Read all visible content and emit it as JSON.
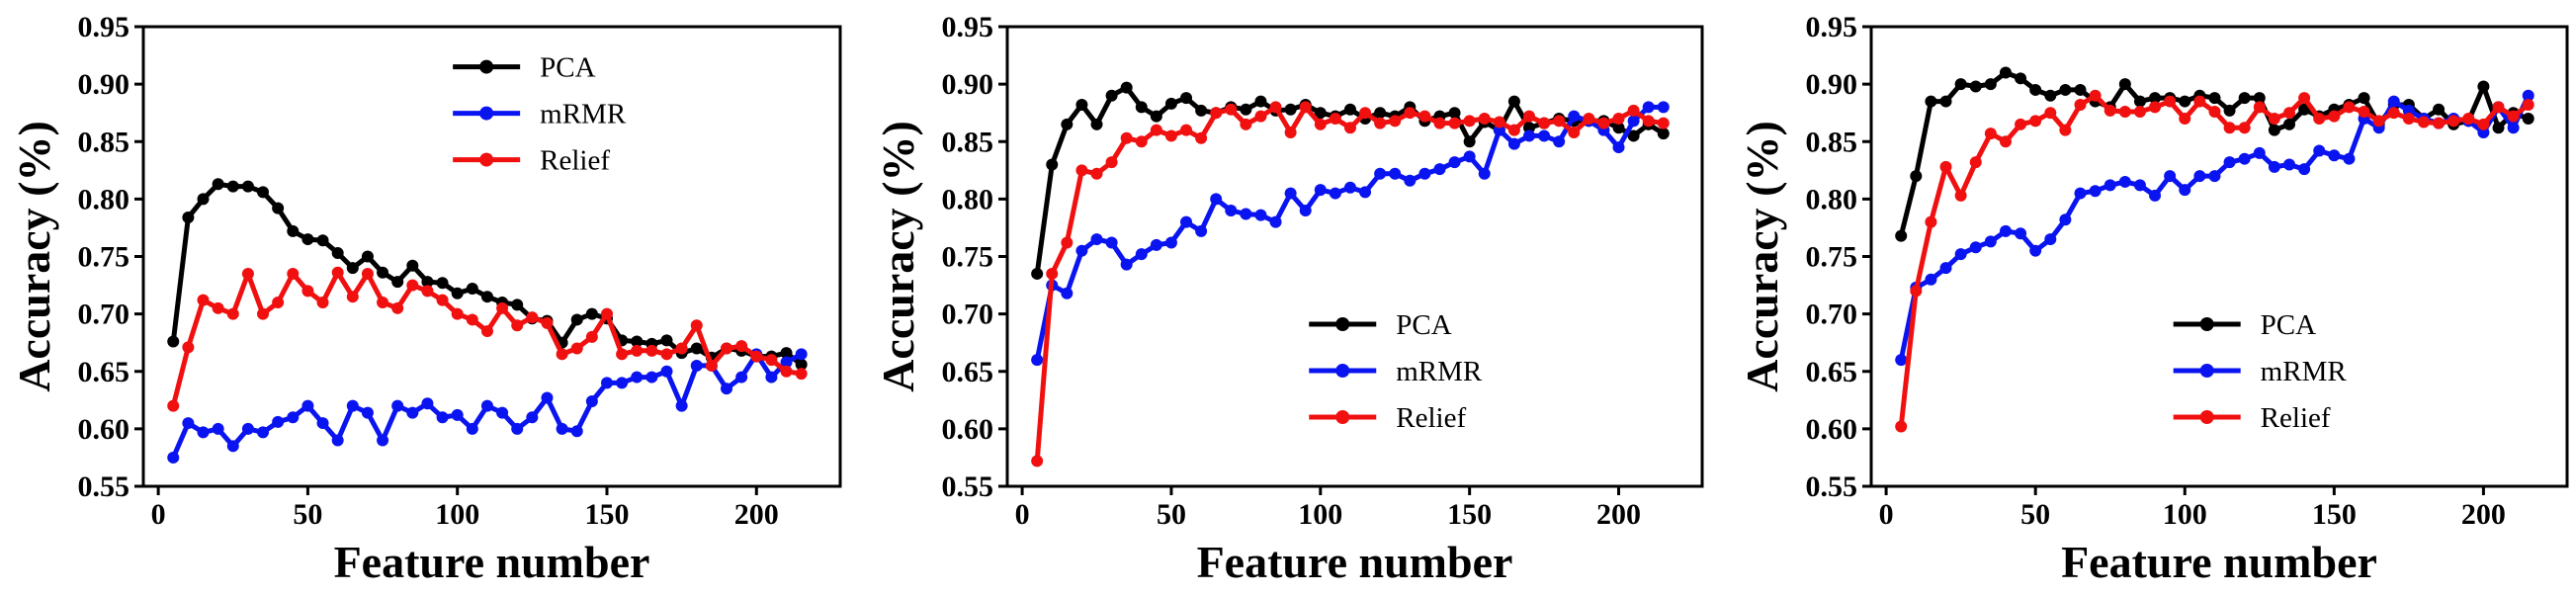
{
  "chart_data": [
    {
      "type": "line",
      "xlabel": "Feature number",
      "ylabel": "Accuracy (%)",
      "xlim": [
        -5,
        228
      ],
      "ylim": [
        0.55,
        0.95
      ],
      "x_ticks": [
        "0",
        "50",
        "100",
        "150",
        "200"
      ],
      "y_ticks": [
        "0.55",
        "0.60",
        "0.65",
        "0.70",
        "0.75",
        "0.80",
        "0.85",
        "0.90",
        "0.95"
      ],
      "legend_position": "upper-right",
      "x": [
        5,
        10,
        15,
        20,
        25,
        30,
        35,
        40,
        45,
        50,
        55,
        60,
        65,
        70,
        75,
        80,
        85,
        90,
        95,
        100,
        105,
        110,
        115,
        120,
        125,
        130,
        135,
        140,
        145,
        150,
        155,
        160,
        165,
        170,
        175,
        180,
        185,
        190,
        195,
        200,
        205,
        210,
        215
      ],
      "series": [
        {
          "name": "PCA",
          "color": "#000000",
          "values": [
            0.676,
            0.784,
            0.8,
            0.813,
            0.811,
            0.811,
            0.806,
            0.792,
            0.772,
            0.765,
            0.764,
            0.753,
            0.74,
            0.75,
            0.736,
            0.728,
            0.742,
            0.728,
            0.727,
            0.718,
            0.722,
            0.715,
            0.71,
            0.708,
            0.696,
            0.694,
            0.675,
            0.695,
            0.7,
            0.696,
            0.677,
            0.676,
            0.674,
            0.677,
            0.666,
            0.67,
            0.662,
            0.67,
            0.668,
            0.663,
            0.663,
            0.666,
            0.656
          ]
        },
        {
          "name": "mRMR",
          "color": "#0a14f0",
          "values": [
            0.575,
            0.605,
            0.597,
            0.6,
            0.585,
            0.6,
            0.597,
            0.606,
            0.61,
            0.62,
            0.605,
            0.59,
            0.62,
            0.614,
            0.59,
            0.62,
            0.614,
            0.622,
            0.61,
            0.612,
            0.6,
            0.62,
            0.614,
            0.6,
            0.61,
            0.627,
            0.6,
            0.598,
            0.624,
            0.64,
            0.64,
            0.645,
            0.645,
            0.65,
            0.62,
            0.655,
            0.655,
            0.635,
            0.645,
            0.665,
            0.645,
            0.658,
            0.665
          ]
        },
        {
          "name": "Relief",
          "color": "#f01010",
          "values": [
            0.62,
            0.671,
            0.712,
            0.705,
            0.7,
            0.735,
            0.7,
            0.71,
            0.735,
            0.72,
            0.71,
            0.736,
            0.715,
            0.735,
            0.71,
            0.705,
            0.725,
            0.72,
            0.712,
            0.7,
            0.695,
            0.685,
            0.705,
            0.69,
            0.697,
            0.692,
            0.665,
            0.67,
            0.68,
            0.7,
            0.665,
            0.668,
            0.668,
            0.665,
            0.67,
            0.69,
            0.655,
            0.67,
            0.672,
            0.663,
            0.66,
            0.65,
            0.648
          ]
        }
      ]
    },
    {
      "type": "line",
      "xlabel": "Feature number",
      "ylabel": "Accuracy (%)",
      "xlim": [
        -5,
        228
      ],
      "ylim": [
        0.55,
        0.95
      ],
      "x_ticks": [
        "0",
        "50",
        "100",
        "150",
        "200"
      ],
      "y_ticks": [
        "0.55",
        "0.60",
        "0.65",
        "0.70",
        "0.75",
        "0.80",
        "0.85",
        "0.90",
        "0.95"
      ],
      "legend_position": "lower-right",
      "x": [
        5,
        10,
        15,
        20,
        25,
        30,
        35,
        40,
        45,
        50,
        55,
        60,
        65,
        70,
        75,
        80,
        85,
        90,
        95,
        100,
        105,
        110,
        115,
        120,
        125,
        130,
        135,
        140,
        145,
        150,
        155,
        160,
        165,
        170,
        175,
        180,
        185,
        190,
        195,
        200,
        205,
        210,
        215
      ],
      "series": [
        {
          "name": "PCA",
          "color": "#000000",
          "values": [
            0.735,
            0.83,
            0.865,
            0.882,
            0.865,
            0.89,
            0.897,
            0.88,
            0.872,
            0.883,
            0.888,
            0.877,
            0.875,
            0.88,
            0.878,
            0.885,
            0.877,
            0.878,
            0.882,
            0.875,
            0.872,
            0.878,
            0.87,
            0.875,
            0.872,
            0.88,
            0.868,
            0.872,
            0.875,
            0.85,
            0.867,
            0.86,
            0.885,
            0.862,
            0.866,
            0.87,
            0.868,
            0.868,
            0.868,
            0.862,
            0.855,
            0.865,
            0.857
          ]
        },
        {
          "name": "mRMR",
          "color": "#0a14f0",
          "values": [
            0.66,
            0.725,
            0.718,
            0.755,
            0.765,
            0.762,
            0.743,
            0.752,
            0.76,
            0.762,
            0.78,
            0.772,
            0.8,
            0.79,
            0.787,
            0.786,
            0.78,
            0.805,
            0.79,
            0.808,
            0.805,
            0.81,
            0.806,
            0.822,
            0.822,
            0.816,
            0.822,
            0.826,
            0.832,
            0.837,
            0.822,
            0.86,
            0.848,
            0.855,
            0.855,
            0.85,
            0.872,
            0.868,
            0.86,
            0.845,
            0.868,
            0.88,
            0.88
          ]
        },
        {
          "name": "Relief",
          "color": "#f01010",
          "values": [
            0.572,
            0.735,
            0.762,
            0.825,
            0.822,
            0.832,
            0.853,
            0.85,
            0.86,
            0.855,
            0.86,
            0.853,
            0.875,
            0.878,
            0.865,
            0.872,
            0.88,
            0.858,
            0.88,
            0.865,
            0.87,
            0.862,
            0.875,
            0.866,
            0.868,
            0.875,
            0.872,
            0.866,
            0.866,
            0.868,
            0.87,
            0.867,
            0.86,
            0.872,
            0.866,
            0.868,
            0.858,
            0.87,
            0.866,
            0.87,
            0.877,
            0.868,
            0.866
          ]
        }
      ]
    },
    {
      "type": "line",
      "xlabel": "Feature number",
      "ylabel": "Accuracy (%)",
      "xlim": [
        -5,
        228
      ],
      "ylim": [
        0.55,
        0.95
      ],
      "x_ticks": [
        "0",
        "50",
        "100",
        "150",
        "200"
      ],
      "y_ticks": [
        "0.55",
        "0.60",
        "0.65",
        "0.70",
        "0.75",
        "0.80",
        "0.85",
        "0.90",
        "0.95"
      ],
      "legend_position": "lower-right",
      "x": [
        5,
        10,
        15,
        20,
        25,
        30,
        35,
        40,
        45,
        50,
        55,
        60,
        65,
        70,
        75,
        80,
        85,
        90,
        95,
        100,
        105,
        110,
        115,
        120,
        125,
        130,
        135,
        140,
        145,
        150,
        155,
        160,
        165,
        170,
        175,
        180,
        185,
        190,
        195,
        200,
        205,
        210,
        215
      ],
      "series": [
        {
          "name": "PCA",
          "color": "#000000",
          "values": [
            0.768,
            0.82,
            0.885,
            0.885,
            0.9,
            0.898,
            0.9,
            0.91,
            0.905,
            0.895,
            0.89,
            0.895,
            0.895,
            0.885,
            0.88,
            0.9,
            0.885,
            0.888,
            0.888,
            0.885,
            0.89,
            0.888,
            0.877,
            0.888,
            0.888,
            0.86,
            0.865,
            0.878,
            0.872,
            0.878,
            0.882,
            0.888,
            0.865,
            0.882,
            0.882,
            0.87,
            0.878,
            0.865,
            0.868,
            0.898,
            0.862,
            0.875,
            0.87
          ]
        },
        {
          "name": "mRMR",
          "color": "#0a14f0",
          "values": [
            0.66,
            0.723,
            0.73,
            0.74,
            0.752,
            0.758,
            0.763,
            0.772,
            0.77,
            0.755,
            0.765,
            0.782,
            0.805,
            0.807,
            0.812,
            0.815,
            0.812,
            0.803,
            0.82,
            0.808,
            0.82,
            0.82,
            0.832,
            0.835,
            0.84,
            0.828,
            0.83,
            0.826,
            0.842,
            0.838,
            0.835,
            0.87,
            0.862,
            0.885,
            0.877,
            0.87,
            0.866,
            0.87,
            0.868,
            0.858,
            0.88,
            0.862,
            0.89
          ]
        },
        {
          "name": "Relief",
          "color": "#f01010",
          "values": [
            0.602,
            0.72,
            0.78,
            0.828,
            0.803,
            0.832,
            0.857,
            0.85,
            0.865,
            0.868,
            0.875,
            0.86,
            0.882,
            0.89,
            0.877,
            0.876,
            0.876,
            0.88,
            0.885,
            0.87,
            0.885,
            0.876,
            0.862,
            0.862,
            0.88,
            0.87,
            0.875,
            0.888,
            0.87,
            0.872,
            0.88,
            0.876,
            0.868,
            0.875,
            0.87,
            0.867,
            0.866,
            0.868,
            0.87,
            0.865,
            0.88,
            0.872,
            0.882
          ]
        }
      ]
    }
  ]
}
